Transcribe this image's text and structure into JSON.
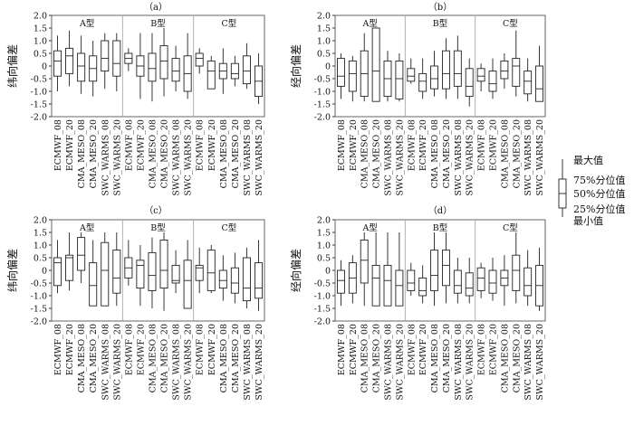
{
  "categories": [
    "ECMWF_08",
    "ECMWF_20",
    "CMA_MESO_08",
    "CMA_MESO_20",
    "SWC_WARMS_08",
    "SWC_WARMS_20"
  ],
  "groups": [
    "A型",
    "B型",
    "C型"
  ],
  "yticks": [
    "2.0",
    "1.5",
    "1.0",
    "0.5",
    "0",
    "-0.5",
    "-1.0",
    "-1.5",
    "-2.0"
  ],
  "legend": {
    "max": "最大值",
    "q75": "75%分位值",
    "q50": "50%分位值",
    "q25": "25%分位值",
    "min": "最小值"
  },
  "chart_data": [
    {
      "type": "box",
      "panel": "（a）",
      "ylabel": "纬向偏差",
      "ylim": [
        -2.0,
        2.0
      ],
      "groups": [
        [
          [
            -1.0,
            -0.4,
            0.2,
            0.6,
            1.2
          ],
          [
            -0.8,
            -0.3,
            0.4,
            0.7,
            1.4
          ],
          [
            -1.1,
            -0.6,
            0.0,
            0.5,
            1.2
          ],
          [
            -1.2,
            -0.6,
            -0.1,
            0.4,
            1.0
          ],
          [
            -0.9,
            -0.2,
            0.3,
            1.0,
            1.3
          ],
          [
            -1.0,
            -0.4,
            0.1,
            1.0,
            1.3
          ]
        ],
        [
          [
            -0.2,
            0.1,
            0.3,
            0.5,
            0.7
          ],
          [
            -1.3,
            -0.4,
            0.0,
            0.4,
            1.3
          ],
          [
            -1.4,
            -0.6,
            -0.1,
            0.5,
            1.3
          ],
          [
            -1.2,
            -0.5,
            0.2,
            0.8,
            1.5
          ],
          [
            -1.0,
            -0.6,
            -0.2,
            0.3,
            0.8
          ],
          [
            -1.3,
            -1.0,
            -0.3,
            0.4,
            1.3
          ]
        ],
        [
          [
            -0.3,
            0.0,
            0.3,
            0.5,
            0.7
          ],
          [
            -0.9,
            -0.9,
            -0.2,
            0.2,
            0.4
          ],
          [
            -1.1,
            -0.5,
            -0.2,
            0.1,
            0.7
          ],
          [
            -0.8,
            -0.5,
            -0.3,
            0.1,
            0.4
          ],
          [
            -0.9,
            -0.7,
            -0.2,
            0.4,
            0.9
          ],
          [
            -1.5,
            -1.2,
            -0.6,
            0.0,
            0.5
          ]
        ]
      ]
    },
    {
      "type": "box",
      "panel": "（b）",
      "ylabel": "经向偏差",
      "ylim": [
        -2.0,
        2.0
      ],
      "groups": [
        [
          [
            -1.3,
            -0.8,
            -0.4,
            0.3,
            0.5
          ],
          [
            -1.4,
            -1.0,
            -0.3,
            0.2,
            0.4
          ],
          [
            -1.4,
            -1.2,
            -0.3,
            0.6,
            1.3
          ],
          [
            -1.4,
            -1.4,
            -0.2,
            1.5,
            1.5
          ],
          [
            -1.4,
            -1.2,
            -0.5,
            0.2,
            0.6
          ],
          [
            -1.4,
            -1.3,
            -0.5,
            0.2,
            0.5
          ]
        ],
        [
          [
            -0.7,
            -0.6,
            -0.4,
            -0.1,
            0.3
          ],
          [
            -1.3,
            -1.0,
            -0.6,
            -0.3,
            0.3
          ],
          [
            -1.2,
            -0.9,
            -0.5,
            0.0,
            0.6
          ],
          [
            -1.3,
            -0.9,
            -0.3,
            0.6,
            1.1
          ],
          [
            -1.3,
            -0.8,
            -0.3,
            0.6,
            1.2
          ],
          [
            -1.6,
            -1.2,
            -0.8,
            -0.1,
            0.3
          ]
        ],
        [
          [
            -1.0,
            -0.6,
            -0.4,
            -0.1,
            0.1
          ],
          [
            -1.3,
            -1.0,
            -0.7,
            -0.2,
            0.3
          ],
          [
            -0.9,
            -0.5,
            -0.2,
            0.2,
            0.5
          ],
          [
            -1.2,
            -0.8,
            0.0,
            0.3,
            1.4
          ],
          [
            -1.4,
            -1.1,
            -0.6,
            -0.2,
            0.3
          ],
          [
            -1.3,
            -1.4,
            -0.9,
            0.0,
            0.8
          ]
        ]
      ]
    },
    {
      "type": "box",
      "panel": "（c）",
      "ylabel": "纬向偏差",
      "ylim": [
        -2.0,
        2.0
      ],
      "groups": [
        [
          [
            -0.9,
            -0.6,
            0.3,
            0.5,
            1.2
          ],
          [
            -0.8,
            -0.4,
            0.5,
            0.6,
            1.5
          ],
          [
            -0.5,
            0.0,
            0.6,
            1.3,
            1.5
          ],
          [
            -1.4,
            -1.4,
            -0.6,
            0.3,
            1.2
          ],
          [
            -1.3,
            -1.4,
            0.0,
            1.1,
            1.5
          ],
          [
            -1.4,
            -0.9,
            -0.3,
            0.8,
            1.5
          ]
        ],
        [
          [
            -0.6,
            -0.3,
            0.1,
            0.5,
            1.2
          ],
          [
            -1.4,
            -0.7,
            0.2,
            0.4,
            1.0
          ],
          [
            -1.5,
            -0.8,
            -0.2,
            0.7,
            1.3
          ],
          [
            -1.6,
            -0.7,
            0.0,
            1.2,
            1.5
          ],
          [
            -0.9,
            -0.5,
            -0.4,
            0.2,
            0.8
          ],
          [
            -1.4,
            -1.5,
            -0.4,
            0.4,
            1.2
          ]
        ],
        [
          [
            -0.9,
            -0.4,
            0.1,
            0.2,
            0.9
          ],
          [
            -0.9,
            -0.8,
            -0.1,
            0.8,
            1.0
          ],
          [
            -1.2,
            -0.7,
            -0.4,
            0.0,
            0.6
          ],
          [
            -1.3,
            -0.9,
            -0.5,
            0.1,
            0.7
          ],
          [
            -1.5,
            -1.2,
            -0.7,
            0.5,
            0.9
          ],
          [
            -1.6,
            -1.1,
            -0.7,
            0.3,
            1.2
          ]
        ]
      ]
    },
    {
      "type": "box",
      "panel": "（d）",
      "ylabel": "经向偏差",
      "ylim": [
        -2.0,
        2.0
      ],
      "groups": [
        [
          [
            -1.4,
            -0.9,
            -0.4,
            0.0,
            0.4
          ],
          [
            -1.3,
            -0.9,
            -0.3,
            0.3,
            0.6
          ],
          [
            -1.4,
            -0.5,
            0.4,
            1.2,
            1.5
          ],
          [
            -1.4,
            -1.4,
            -0.3,
            0.2,
            1.5
          ],
          [
            -1.4,
            -1.4,
            -0.4,
            0.2,
            1.5
          ],
          [
            -1.4,
            -1.4,
            -0.6,
            0.0,
            1.5
          ]
        ],
        [
          [
            -1.0,
            -0.8,
            -0.5,
            0.0,
            0.3
          ],
          [
            -1.3,
            -1.0,
            -0.8,
            -0.3,
            0.2
          ],
          [
            -1.4,
            -0.8,
            -0.2,
            0.8,
            1.5
          ],
          [
            -1.3,
            -0.6,
            0.2,
            0.8,
            1.5
          ],
          [
            -1.3,
            -0.9,
            -0.6,
            0.0,
            0.5
          ],
          [
            -1.3,
            -1.0,
            -0.7,
            -0.1,
            0.5
          ]
        ],
        [
          [
            -1.1,
            -0.8,
            -0.3,
            0.1,
            0.3
          ],
          [
            -1.2,
            -0.9,
            -0.5,
            0.0,
            0.5
          ],
          [
            -1.4,
            -0.6,
            -0.3,
            0.0,
            0.6
          ],
          [
            -1.3,
            -0.8,
            0.0,
            0.6,
            1.5
          ],
          [
            -1.4,
            -1.0,
            -0.6,
            0.1,
            0.8
          ],
          [
            -1.6,
            -1.4,
            -0.6,
            0.2,
            0.9
          ]
        ]
      ]
    }
  ]
}
